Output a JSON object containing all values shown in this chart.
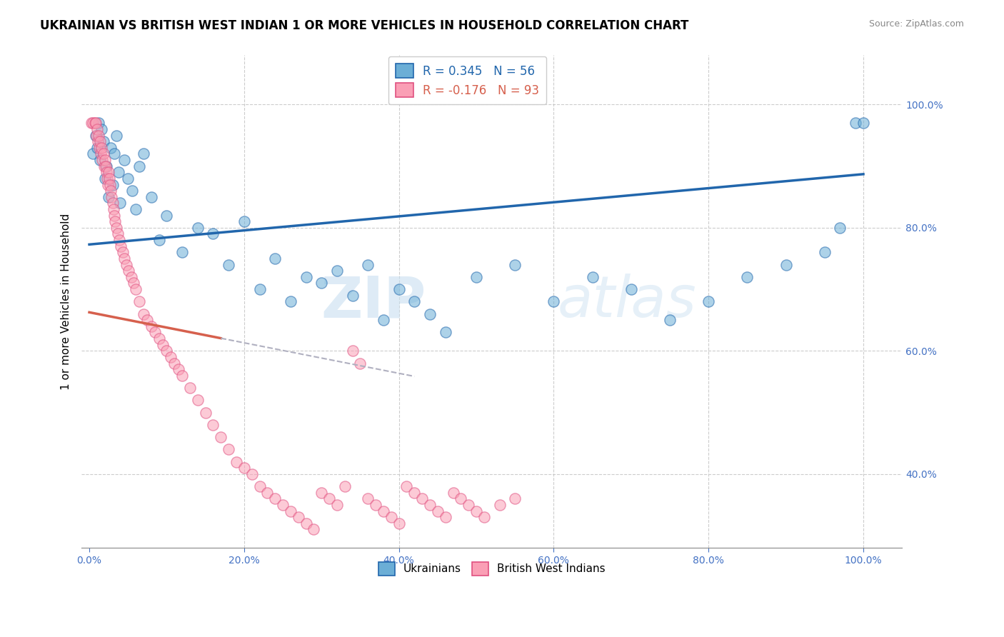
{
  "title": "UKRAINIAN VS BRITISH WEST INDIAN 1 OR MORE VEHICLES IN HOUSEHOLD CORRELATION CHART",
  "source": "Source: ZipAtlas.com",
  "xlabel_ticks": [
    "0.0%",
    "20.0%",
    "40.0%",
    "60.0%",
    "80.0%",
    "100.0%"
  ],
  "xlabel_vals": [
    0.0,
    0.2,
    0.4,
    0.6,
    0.8,
    1.0
  ],
  "ylabel": "1 or more Vehicles in Household",
  "ylabel_ticks": [
    "40.0%",
    "60.0%",
    "80.0%",
    "100.0%"
  ],
  "ylabel_vals": [
    0.4,
    0.6,
    0.8,
    1.0
  ],
  "blue_R": 0.345,
  "blue_N": 56,
  "pink_R": -0.176,
  "pink_N": 93,
  "blue_color": "#6baed6",
  "pink_color": "#fa9fb5",
  "blue_line_color": "#2166ac",
  "pink_line_color": "#d6604d",
  "pink_dash_color": "#b0b0c0",
  "legend_label_blue": "Ukrainians",
  "legend_label_pink": "British West Indians",
  "watermark_zip": "ZIP",
  "watermark_atlas": "atlas",
  "blue_x": [
    0.005,
    0.008,
    0.01,
    0.012,
    0.014,
    0.016,
    0.018,
    0.02,
    0.022,
    0.025,
    0.028,
    0.03,
    0.032,
    0.035,
    0.038,
    0.04,
    0.045,
    0.05,
    0.055,
    0.06,
    0.065,
    0.07,
    0.08,
    0.09,
    0.1,
    0.12,
    0.14,
    0.16,
    0.18,
    0.2,
    0.22,
    0.24,
    0.26,
    0.28,
    0.3,
    0.32,
    0.34,
    0.36,
    0.38,
    0.4,
    0.42,
    0.44,
    0.46,
    0.5,
    0.55,
    0.6,
    0.65,
    0.7,
    0.75,
    0.8,
    0.85,
    0.9,
    0.95,
    0.97,
    0.99,
    1.0
  ],
  "blue_y": [
    0.92,
    0.95,
    0.93,
    0.97,
    0.91,
    0.96,
    0.94,
    0.88,
    0.9,
    0.85,
    0.93,
    0.87,
    0.92,
    0.95,
    0.89,
    0.84,
    0.91,
    0.88,
    0.86,
    0.83,
    0.9,
    0.92,
    0.85,
    0.78,
    0.82,
    0.76,
    0.8,
    0.79,
    0.74,
    0.81,
    0.7,
    0.75,
    0.68,
    0.72,
    0.71,
    0.73,
    0.69,
    0.74,
    0.65,
    0.7,
    0.68,
    0.66,
    0.63,
    0.72,
    0.74,
    0.68,
    0.72,
    0.7,
    0.65,
    0.68,
    0.72,
    0.74,
    0.76,
    0.8,
    0.97,
    0.97
  ],
  "pink_x": [
    0.003,
    0.005,
    0.007,
    0.008,
    0.009,
    0.01,
    0.011,
    0.012,
    0.013,
    0.014,
    0.015,
    0.016,
    0.017,
    0.018,
    0.019,
    0.02,
    0.021,
    0.022,
    0.023,
    0.024,
    0.025,
    0.026,
    0.027,
    0.028,
    0.029,
    0.03,
    0.031,
    0.032,
    0.033,
    0.035,
    0.037,
    0.039,
    0.041,
    0.043,
    0.045,
    0.048,
    0.051,
    0.054,
    0.057,
    0.06,
    0.065,
    0.07,
    0.075,
    0.08,
    0.085,
    0.09,
    0.095,
    0.1,
    0.105,
    0.11,
    0.115,
    0.12,
    0.13,
    0.14,
    0.15,
    0.16,
    0.17,
    0.18,
    0.19,
    0.2,
    0.21,
    0.22,
    0.23,
    0.24,
    0.25,
    0.26,
    0.27,
    0.28,
    0.29,
    0.3,
    0.31,
    0.32,
    0.33,
    0.34,
    0.35,
    0.36,
    0.37,
    0.38,
    0.39,
    0.4,
    0.41,
    0.42,
    0.43,
    0.44,
    0.45,
    0.46,
    0.47,
    0.48,
    0.49,
    0.5,
    0.51,
    0.53,
    0.55
  ],
  "pink_y": [
    0.97,
    0.97,
    0.97,
    0.97,
    0.95,
    0.96,
    0.94,
    0.95,
    0.93,
    0.94,
    0.92,
    0.93,
    0.91,
    0.92,
    0.9,
    0.91,
    0.9,
    0.89,
    0.88,
    0.87,
    0.89,
    0.88,
    0.87,
    0.86,
    0.85,
    0.84,
    0.83,
    0.82,
    0.81,
    0.8,
    0.79,
    0.78,
    0.77,
    0.76,
    0.75,
    0.74,
    0.73,
    0.72,
    0.71,
    0.7,
    0.68,
    0.66,
    0.65,
    0.64,
    0.63,
    0.62,
    0.61,
    0.6,
    0.59,
    0.58,
    0.57,
    0.56,
    0.54,
    0.52,
    0.5,
    0.48,
    0.46,
    0.44,
    0.42,
    0.41,
    0.4,
    0.38,
    0.37,
    0.36,
    0.35,
    0.34,
    0.33,
    0.32,
    0.31,
    0.37,
    0.36,
    0.35,
    0.38,
    0.6,
    0.58,
    0.36,
    0.35,
    0.34,
    0.33,
    0.32,
    0.38,
    0.37,
    0.36,
    0.35,
    0.34,
    0.33,
    0.37,
    0.36,
    0.35,
    0.34,
    0.33,
    0.35,
    0.36
  ]
}
